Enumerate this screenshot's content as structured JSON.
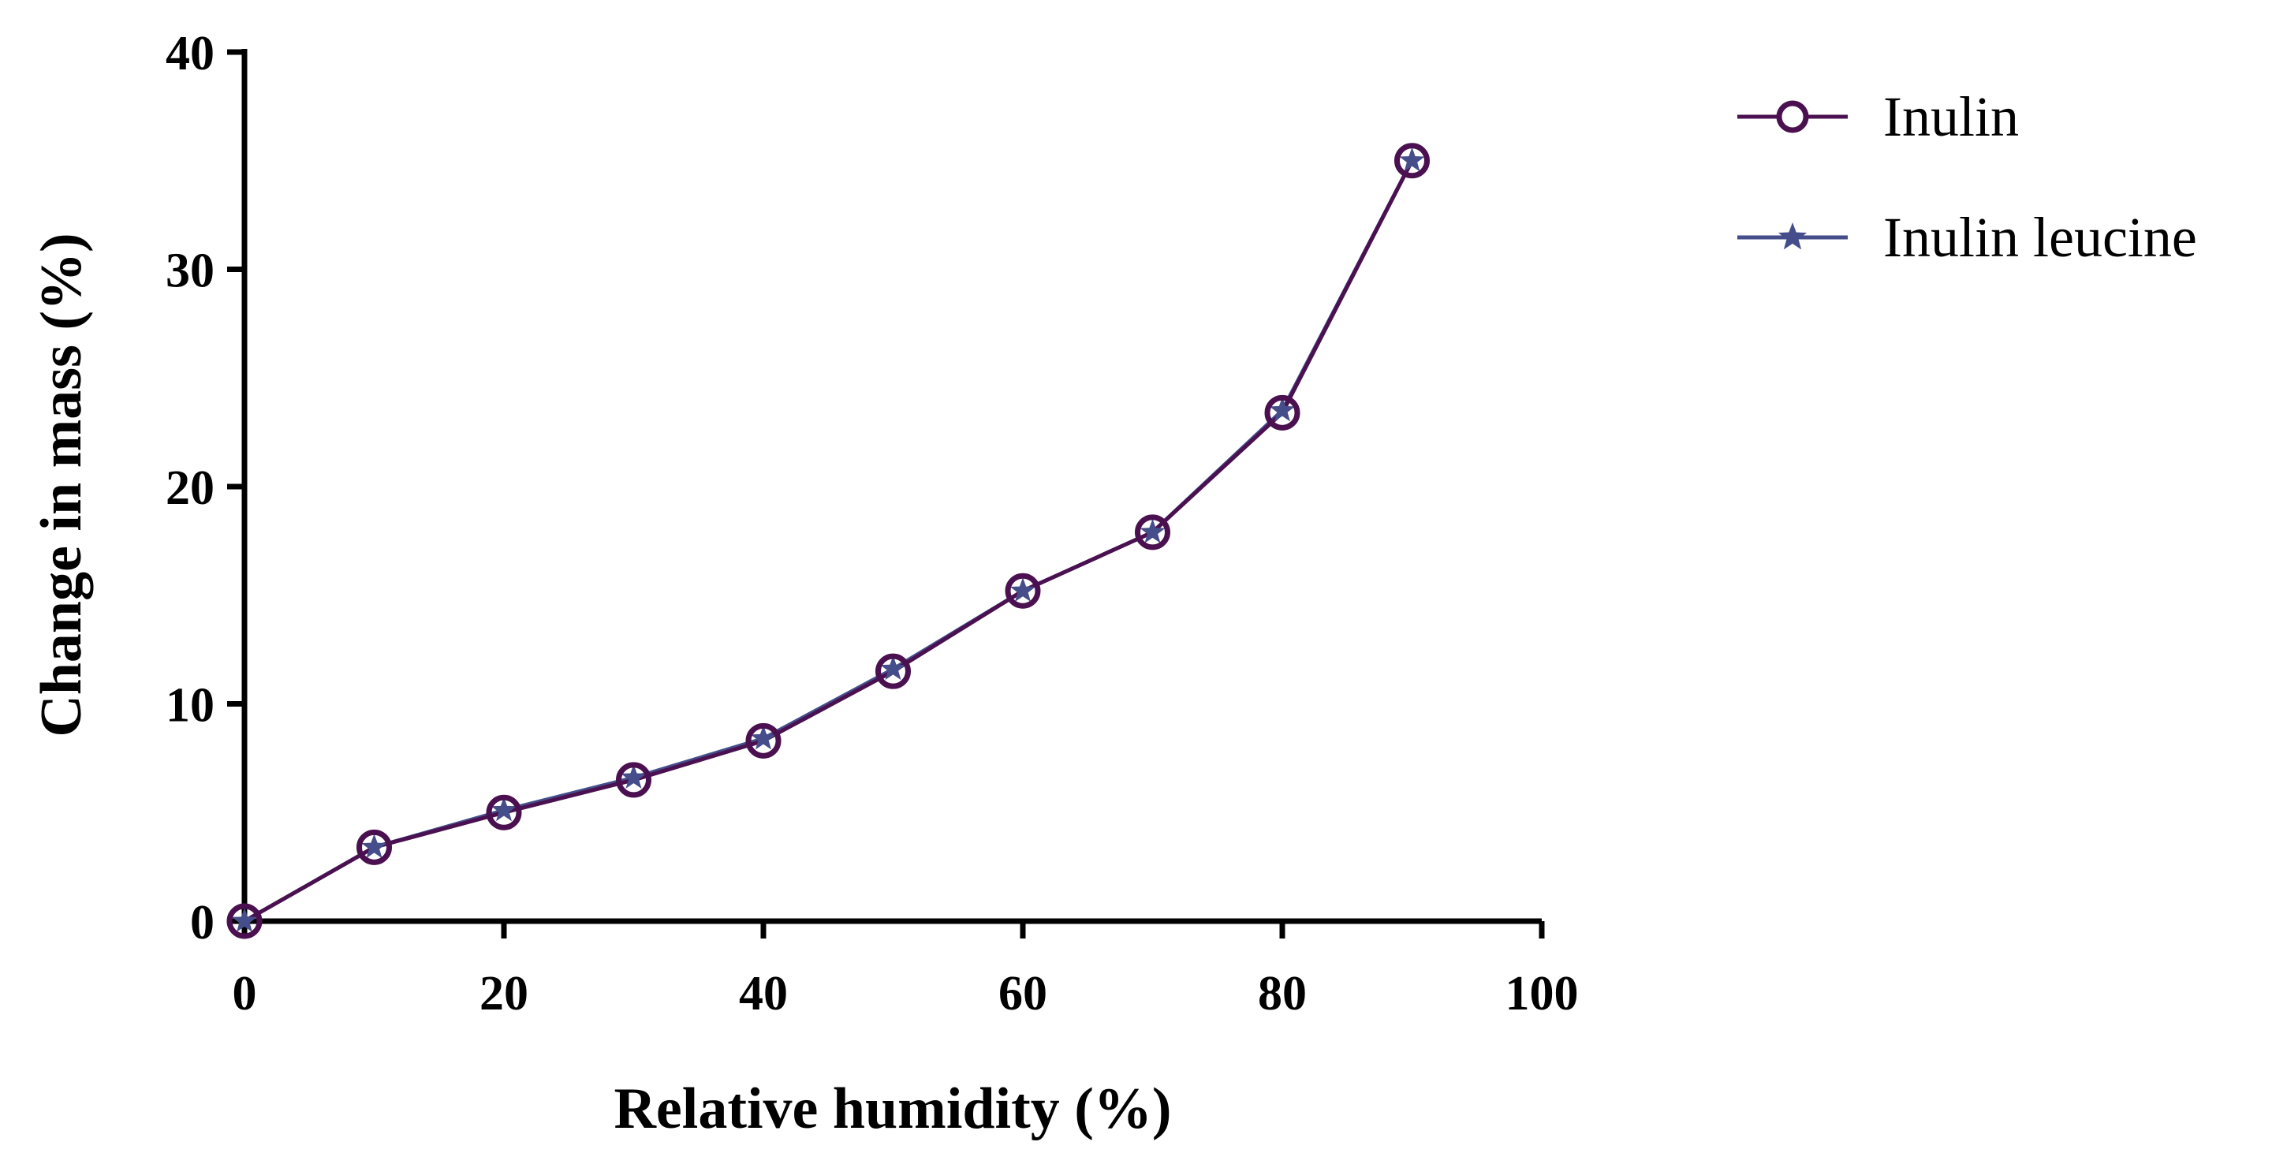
{
  "chart_data": {
    "type": "line",
    "title": "",
    "xlabel": "Relative humidity (%)",
    "ylabel": "Change in mass (%)",
    "xlim": [
      0,
      100
    ],
    "ylim": [
      0,
      40
    ],
    "x_ticks": [
      "0",
      "20",
      "40",
      "60",
      "80",
      "100"
    ],
    "y_ticks": [
      "0",
      "10",
      "20",
      "30",
      "40"
    ],
    "grid": false,
    "legend_position": "top-right outside",
    "x": [
      0,
      10,
      20,
      30,
      40,
      50,
      60,
      70,
      80,
      90
    ],
    "series": [
      {
        "name": "Inulin",
        "marker": "open-circle",
        "color": "#4a1050",
        "values": [
          0,
          3.4,
          5.0,
          6.5,
          8.3,
          11.5,
          15.2,
          17.9,
          23.4,
          35.0
        ]
      },
      {
        "name": "Inulin leucine",
        "marker": "star",
        "color": "#454e8a",
        "values": [
          0,
          3.4,
          5.1,
          6.6,
          8.4,
          11.6,
          15.2,
          17.9,
          23.5,
          35.0
        ]
      }
    ]
  }
}
